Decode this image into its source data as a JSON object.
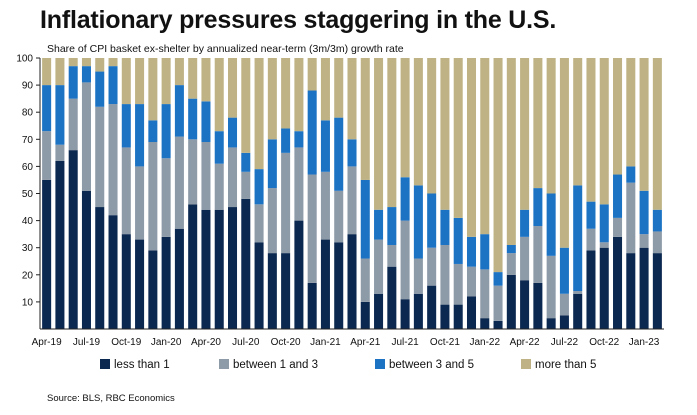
{
  "title": "Inflationary pressures staggering in the U.S.",
  "subtitle": "Share of CPI basket ex-shelter by annualized near-term (3m/3m) growth rate",
  "source": "Source: BLS, RBC Economics",
  "colors": {
    "less_than_1": "#0b2850",
    "between_1_and_3": "#8d9aa8",
    "between_3_and_5": "#1c73c4",
    "more_than_5": "#bfb385"
  },
  "chart_data": {
    "type": "bar",
    "stacked": true,
    "title": "Inflationary pressures staggering in the U.S.",
    "subtitle": "Share of CPI basket ex-shelter by annualized near-term (3m/3m) growth rate",
    "xlabel": "",
    "ylabel": "",
    "ylim": [
      0,
      100
    ],
    "yticks": [
      "10",
      "20",
      "30",
      "40",
      "50",
      "60",
      "70",
      "80",
      "90",
      "100"
    ],
    "xtick_labels": [
      {
        "index": 0,
        "label": "Apr-19"
      },
      {
        "index": 3,
        "label": "Jul-19"
      },
      {
        "index": 6,
        "label": "Oct-19"
      },
      {
        "index": 9,
        "label": "Jan-20"
      },
      {
        "index": 12,
        "label": "Apr-20"
      },
      {
        "index": 15,
        "label": "Jul-20"
      },
      {
        "index": 18,
        "label": "Oct-20"
      },
      {
        "index": 21,
        "label": "Jan-21"
      },
      {
        "index": 24,
        "label": "Apr-21"
      },
      {
        "index": 27,
        "label": "Jul-21"
      },
      {
        "index": 30,
        "label": "Oct-21"
      },
      {
        "index": 33,
        "label": "Jan-22"
      },
      {
        "index": 36,
        "label": "Apr-22"
      },
      {
        "index": 39,
        "label": "Jul-22"
      },
      {
        "index": 42,
        "label": "Oct-22"
      },
      {
        "index": 45,
        "label": "Jan-23"
      }
    ],
    "legend": [
      "less than 1",
      "between 1 and 3",
      "between 3 and 5",
      "more than 5"
    ],
    "legend_position": "bottom",
    "series": [
      {
        "name": "less than 1",
        "values": [
          55,
          62,
          66,
          51,
          45,
          42,
          35,
          33,
          29,
          34,
          37,
          46,
          44,
          44,
          45,
          48,
          32,
          28,
          28,
          40,
          17,
          33,
          32,
          35,
          10,
          13,
          23,
          11,
          13,
          16,
          9,
          9,
          12,
          4,
          3,
          20,
          18,
          17,
          4,
          5,
          13,
          29,
          30,
          34,
          28,
          30,
          28
        ]
      },
      {
        "name": "between 1 and 3",
        "values": [
          18,
          6,
          19,
          40,
          37,
          41,
          32,
          27,
          40,
          29,
          34,
          24,
          25,
          17,
          22,
          10,
          14,
          24,
          37,
          27,
          40,
          25,
          19,
          25,
          16,
          20,
          8,
          29,
          13,
          14,
          22,
          15,
          11,
          18,
          13,
          8,
          16,
          21,
          23,
          8,
          1,
          8,
          2,
          7,
          26,
          5,
          8
        ]
      },
      {
        "name": "between 3 and 5",
        "values": [
          17,
          22,
          12,
          6,
          13,
          14,
          16,
          23,
          8,
          20,
          19,
          15,
          15,
          12,
          11,
          7,
          13,
          18,
          9,
          6,
          31,
          19,
          27,
          10,
          29,
          11,
          14,
          16,
          27,
          20,
          13,
          17,
          11,
          13,
          5,
          3,
          10,
          14,
          23,
          17,
          39,
          10,
          14,
          16,
          6,
          16,
          8
        ]
      },
      {
        "name": "more than 5",
        "values": [
          10,
          10,
          3,
          3,
          5,
          3,
          17,
          17,
          23,
          17,
          10,
          15,
          16,
          27,
          22,
          35,
          41,
          30,
          26,
          27,
          12,
          23,
          22,
          30,
          45,
          56,
          55,
          44,
          47,
          50,
          56,
          59,
          66,
          65,
          79,
          69,
          56,
          48,
          50,
          70,
          47,
          53,
          54,
          43,
          40,
          49,
          56
        ]
      }
    ]
  }
}
